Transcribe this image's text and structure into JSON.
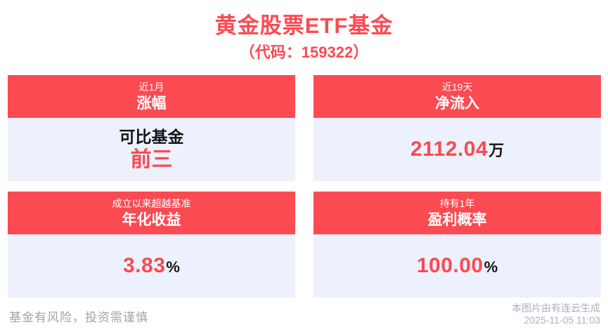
{
  "header": {
    "title": "黄金股票ETF基金",
    "subtitle": "（代码：159322）"
  },
  "cards": [
    {
      "period": "近1月",
      "metric": "涨幅",
      "label": "可比基金",
      "value": "前三",
      "unit": ""
    },
    {
      "period": "近19天",
      "metric": "净流入",
      "value": "2112.04",
      "unit": "万"
    },
    {
      "period": "成立以来超越基准",
      "metric": "年化收益",
      "value": "3.83",
      "unit": "%"
    },
    {
      "period": "持有1年",
      "metric": "盈利概率",
      "value": "100.00",
      "unit": "%"
    }
  ],
  "footer": {
    "disclaimer": "基金有风险，投资需谨慎",
    "credit": "本图片由有连云生成",
    "datetime": "2025-11-05 11:03"
  },
  "colors": {
    "accent_red": "#fb4a52",
    "card_body_bg": "#ecf1fd",
    "text_dark": "#141414",
    "disclaimer_gray": "#a4a4a6",
    "credit_gray": "#a9b0bc"
  }
}
